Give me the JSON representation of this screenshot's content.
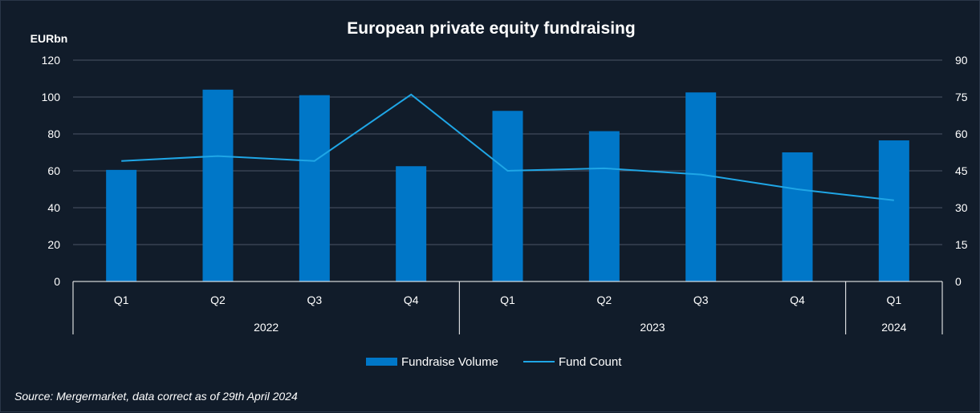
{
  "chart_data": {
    "type": "bar",
    "title": "European private equity fundraising",
    "ylabel": "EURbn",
    "y2label": "",
    "categories": [
      "Q1",
      "Q2",
      "Q3",
      "Q4",
      "Q1",
      "Q2",
      "Q3",
      "Q4",
      "Q1"
    ],
    "groups": [
      {
        "label": "2022",
        "count": 4
      },
      {
        "label": "2023",
        "count": 4
      },
      {
        "label": "2024",
        "count": 1
      }
    ],
    "ylim": [
      0,
      120
    ],
    "yticks": [
      0,
      20,
      40,
      60,
      80,
      100,
      120
    ],
    "y2lim": [
      0,
      90
    ],
    "y2ticks": [
      0,
      15,
      30,
      45,
      60,
      75,
      90
    ],
    "grid": true,
    "legend_position": "bottom",
    "series": [
      {
        "name": "Fundraise Volume",
        "type": "bar",
        "axis": "left",
        "color": "#0077c8",
        "values": [
          60.5,
          104,
          101,
          62.5,
          92.5,
          81.5,
          102.5,
          70,
          76.5
        ]
      },
      {
        "name": "Fund Count",
        "type": "line",
        "axis": "right",
        "color": "#1fa6e6",
        "values": [
          49,
          51,
          49,
          76,
          45,
          46,
          43.5,
          37.5,
          33
        ]
      }
    ]
  },
  "source_note": "Source: Mergermarket, data correct as of 29th April 2024"
}
